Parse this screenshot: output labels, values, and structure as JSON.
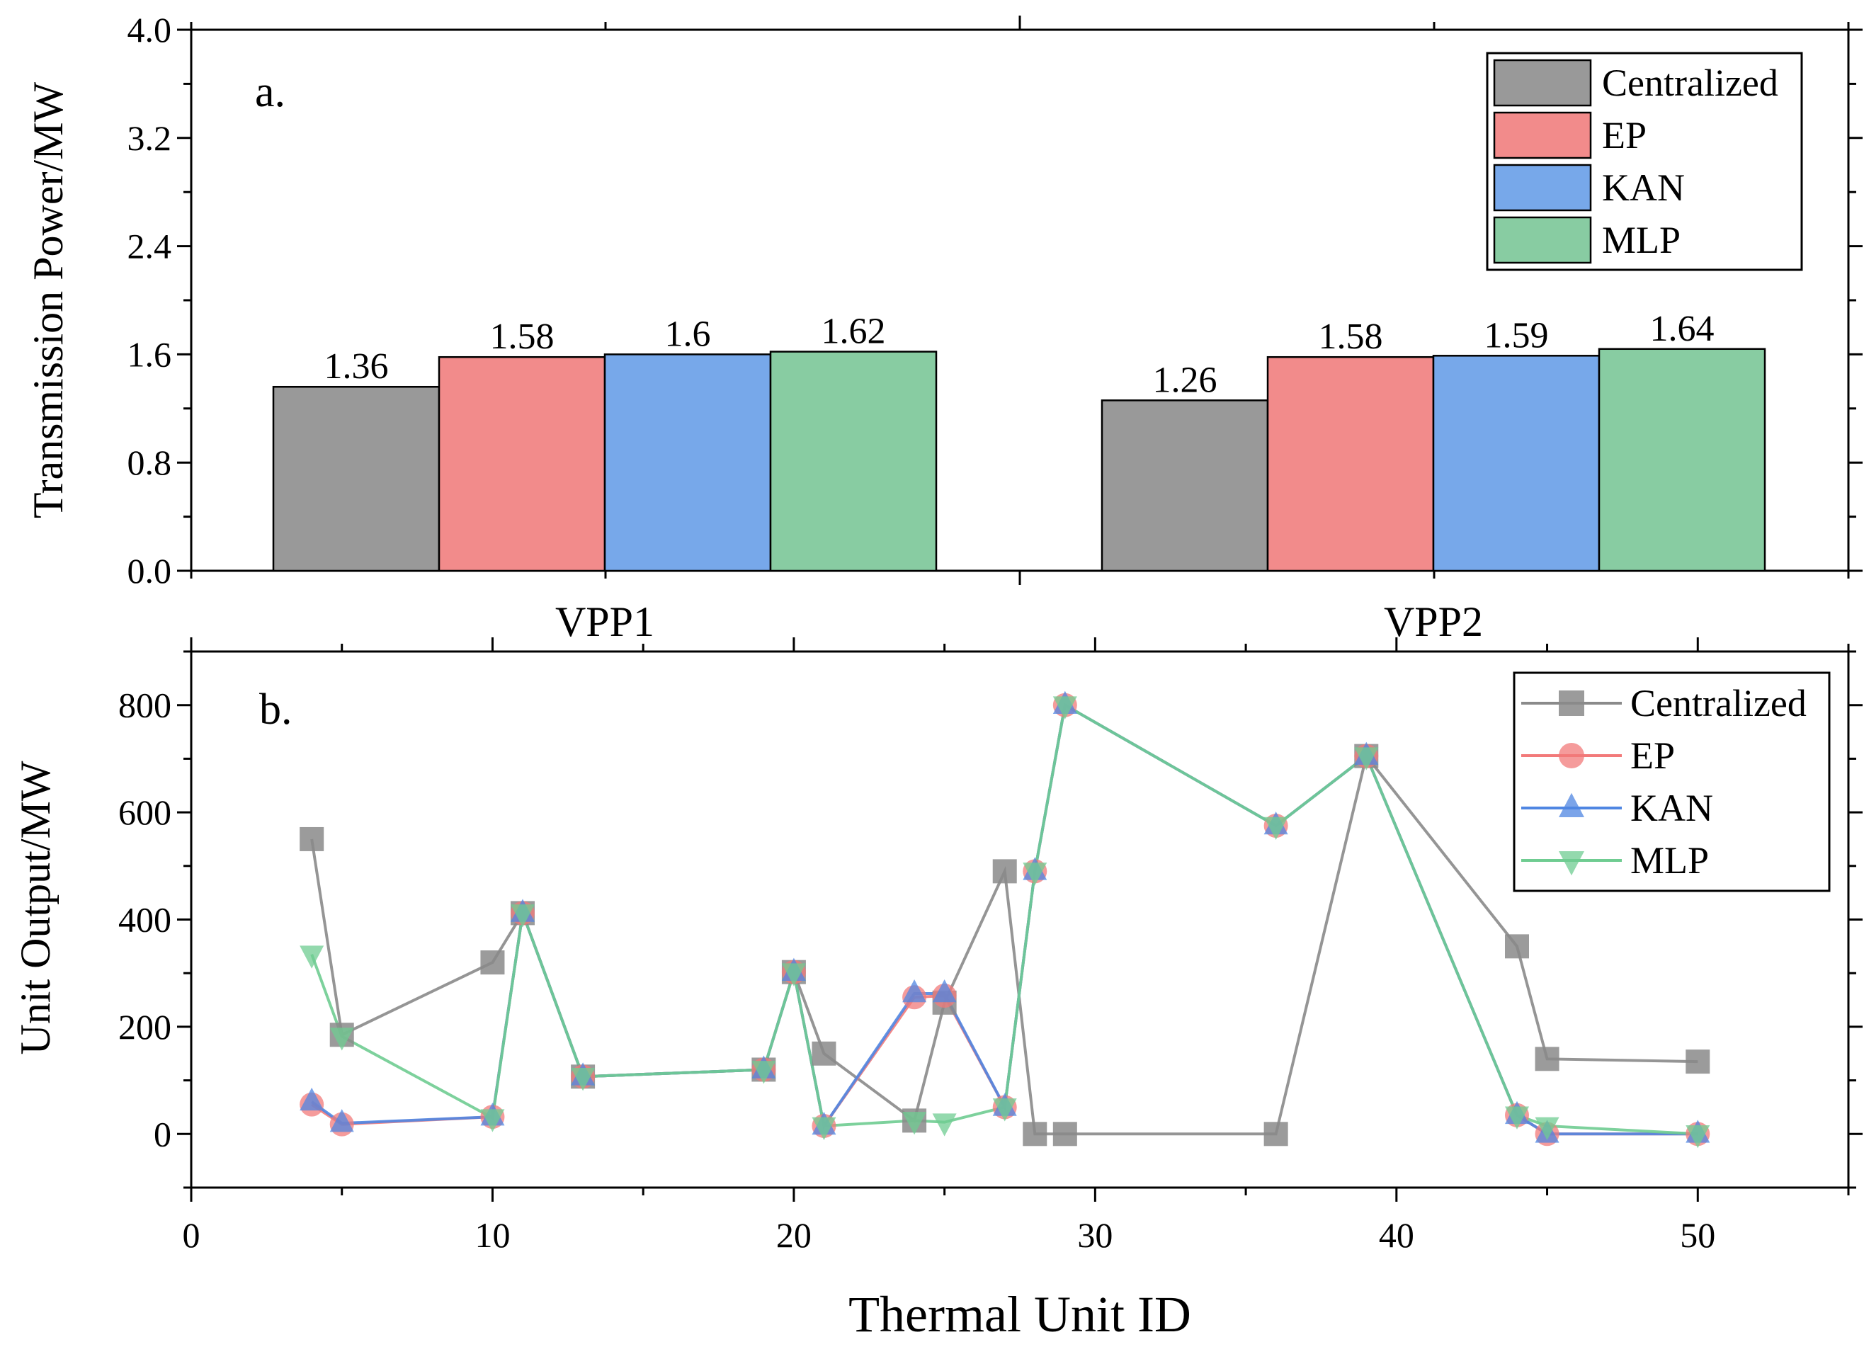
{
  "chart_data": [
    {
      "type": "bar",
      "panel_label": "a.",
      "title": "",
      "xlabel": "",
      "ylabel": "Transmission Power/MW",
      "ylim": [
        0,
        4.0
      ],
      "yticks": [
        "0.0",
        "0.8",
        "1.6",
        "2.4",
        "3.2",
        "4.0"
      ],
      "categories": [
        "VPP1",
        "VPP2"
      ],
      "series": [
        {
          "name": "Centralized",
          "color": "#999999",
          "values": [
            1.36,
            1.26
          ],
          "labels": [
            "1.36",
            "1.26"
          ]
        },
        {
          "name": "EP",
          "color": "#f28b8b",
          "values": [
            1.58,
            1.58
          ],
          "labels": [
            "1.58",
            "1.58"
          ]
        },
        {
          "name": "KAN",
          "color": "#77a8ea",
          "values": [
            1.6,
            1.59
          ],
          "labels": [
            "1.6",
            "1.59"
          ]
        },
        {
          "name": "MLP",
          "color": "#88cca2",
          "values": [
            1.62,
            1.64
          ],
          "labels": [
            "1.62",
            "1.64"
          ]
        }
      ],
      "legend_position": "top-right"
    },
    {
      "type": "line",
      "panel_label": "b.",
      "title": "",
      "xlabel": "Thermal Unit ID",
      "ylabel": "Unit Output/MW",
      "xlim": [
        0,
        55
      ],
      "ylim": [
        -100,
        900
      ],
      "xticks": [
        "0",
        "10",
        "20",
        "30",
        "40",
        "50"
      ],
      "yticks": [
        "0",
        "200",
        "400",
        "600",
        "800"
      ],
      "series": [
        {
          "name": "Centralized",
          "color": "#8a8a8a",
          "marker": "square",
          "points": [
            [
              4,
              550
            ],
            [
              5,
              185
            ],
            [
              10,
              320
            ],
            [
              11,
              412
            ],
            [
              13,
              107
            ],
            [
              19,
              120
            ],
            [
              20,
              302
            ],
            [
              21,
              150
            ],
            [
              24,
              25
            ],
            [
              25,
              245
            ],
            [
              27,
              490
            ],
            [
              28,
              0
            ],
            [
              29,
              0
            ],
            [
              36,
              0
            ],
            [
              39,
              705
            ],
            [
              44,
              350
            ],
            [
              45,
              140
            ],
            [
              50,
              135
            ]
          ]
        },
        {
          "name": "EP",
          "color": "#f27a7a",
          "marker": "circle",
          "points": [
            [
              4,
              55
            ],
            [
              5,
              18
            ],
            [
              10,
              32
            ],
            [
              11,
              412
            ],
            [
              13,
              107
            ],
            [
              19,
              120
            ],
            [
              20,
              302
            ],
            [
              21,
              15
            ],
            [
              24,
              255
            ],
            [
              25,
              258
            ],
            [
              27,
              50
            ],
            [
              28,
              490
            ],
            [
              29,
              800
            ],
            [
              36,
              575
            ],
            [
              39,
              705
            ],
            [
              44,
              35
            ],
            [
              45,
              0
            ],
            [
              50,
              0
            ]
          ]
        },
        {
          "name": "KAN",
          "color": "#4f86e2",
          "marker": "triangle-up",
          "points": [
            [
              4,
              60
            ],
            [
              5,
              20
            ],
            [
              10,
              32
            ],
            [
              11,
              412
            ],
            [
              13,
              107
            ],
            [
              19,
              120
            ],
            [
              20,
              302
            ],
            [
              21,
              15
            ],
            [
              24,
              262
            ],
            [
              25,
              262
            ],
            [
              27,
              50
            ],
            [
              28,
              490
            ],
            [
              29,
              800
            ],
            [
              36,
              575
            ],
            [
              39,
              705
            ],
            [
              44,
              35
            ],
            [
              45,
              0
            ],
            [
              50,
              0
            ]
          ]
        },
        {
          "name": "MLP",
          "color": "#6fcc91",
          "marker": "triangle-down",
          "points": [
            [
              4,
              335
            ],
            [
              5,
              182
            ],
            [
              10,
              30
            ],
            [
              11,
              412
            ],
            [
              13,
              107
            ],
            [
              19,
              120
            ],
            [
              20,
              302
            ],
            [
              21,
              15
            ],
            [
              24,
              25
            ],
            [
              25,
              22
            ],
            [
              27,
              50
            ],
            [
              28,
              490
            ],
            [
              29,
              800
            ],
            [
              36,
              575
            ],
            [
              39,
              705
            ],
            [
              44,
              35
            ],
            [
              45,
              15
            ],
            [
              50,
              0
            ]
          ]
        }
      ],
      "legend_position": "top-right"
    }
  ]
}
